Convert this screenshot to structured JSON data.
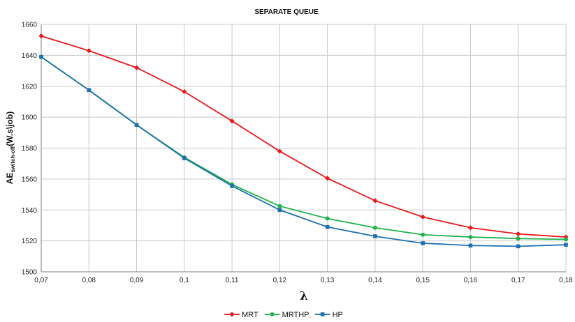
{
  "chart_data": {
    "type": "line",
    "title": "SEPARATE QUEUE",
    "xlabel": "λ",
    "ylabel": {
      "prefix": "AE",
      "subscript": "switch-off",
      "suffix": "(W.s\\job)"
    },
    "x": [
      0.07,
      0.08,
      0.09,
      0.1,
      0.11,
      0.12,
      0.13,
      0.14,
      0.15,
      0.16,
      0.17,
      0.18
    ],
    "x_tick_labels": [
      "0,07",
      "0,08",
      "0,09",
      "0,1",
      "0,11",
      "0,12",
      "0,13",
      "0,14",
      "0,15",
      "0,16",
      "0,17",
      "0,18"
    ],
    "xlim": [
      0.07,
      0.18
    ],
    "ylim": [
      1500,
      1660
    ],
    "y_ticks": [
      1500,
      1520,
      1540,
      1560,
      1580,
      1600,
      1620,
      1640,
      1660
    ],
    "grid": true,
    "legend_position": "bottom",
    "series": [
      {
        "name": "MRT",
        "color": "#e8191c",
        "marker": "diamond",
        "values": [
          1652.5,
          1643,
          1632,
          1616.5,
          1597.5,
          1578,
          1560.5,
          1546,
          1535.5,
          1528.5,
          1524.5,
          1522.5
        ]
      },
      {
        "name": "MRTHP",
        "color": "#1db34d",
        "marker": "circle",
        "values": [
          1639,
          1617.5,
          1595,
          1574,
          1556.5,
          1542.5,
          1534.5,
          1528.5,
          1524,
          1522.5,
          1521.5,
          1521
        ]
      },
      {
        "name": "HP",
        "color": "#1f6fb0",
        "marker": "square",
        "values": [
          1639,
          1617.5,
          1595,
          1573.5,
          1555.5,
          1540,
          1529,
          1523,
          1518.5,
          1517,
          1516.5,
          1517.5
        ]
      }
    ]
  }
}
